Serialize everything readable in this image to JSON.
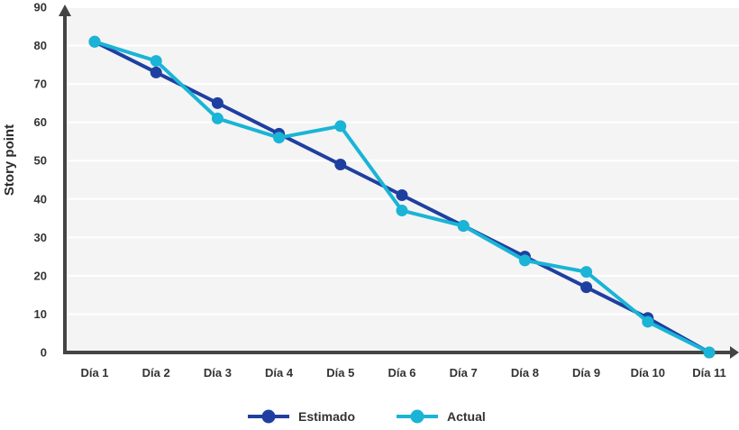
{
  "chart_data": {
    "type": "line",
    "categories": [
      "Día 1",
      "Día 2",
      "Día 3",
      "Día 4",
      "Día 5",
      "Día 6",
      "Día 7",
      "Día 8",
      "Día 9",
      "Día 10",
      "Día 11"
    ],
    "series": [
      {
        "name": "Estimado",
        "color": "#1f3fa0",
        "values": [
          81,
          73,
          65,
          57,
          49,
          41,
          33,
          25,
          17,
          9,
          0
        ]
      },
      {
        "name": "Actual",
        "color": "#1ab4d6",
        "values": [
          81,
          76,
          61,
          56,
          59,
          37,
          33,
          24,
          21,
          8,
          0
        ]
      }
    ],
    "title": "",
    "xlabel": "",
    "ylabel": "Story point",
    "ylim": [
      0,
      90
    ],
    "yticks": [
      0,
      10,
      20,
      30,
      40,
      50,
      60,
      70,
      80,
      90
    ],
    "grid": true,
    "legend_position": "bottom",
    "plot_background": "#f4f4f4",
    "grid_color": "#ffffff",
    "axis_color": "#444444"
  }
}
